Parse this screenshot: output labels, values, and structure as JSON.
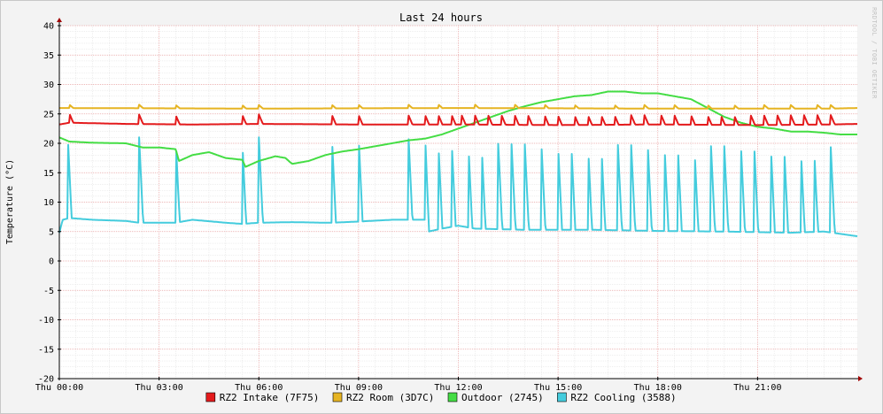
{
  "chart_data": {
    "type": "line",
    "title": "Last 24 hours",
    "ylabel": "Temperature (°C)",
    "watermark": "RRDTOOL / TOBI OETIKER",
    "ylim": [
      -20,
      40
    ],
    "yticks": [
      40,
      35,
      30,
      25,
      20,
      15,
      10,
      5,
      0,
      -5,
      -10,
      -15,
      -20
    ],
    "xlim_hours": [
      0,
      24
    ],
    "xticks": [
      {
        "hour": 0,
        "label": "Thu 00:00"
      },
      {
        "hour": 3,
        "label": "Thu 03:00"
      },
      {
        "hour": 6,
        "label": "Thu 06:00"
      },
      {
        "hour": 9,
        "label": "Thu 09:00"
      },
      {
        "hour": 12,
        "label": "Thu 12:00"
      },
      {
        "hour": 15,
        "label": "Thu 15:00"
      },
      {
        "hour": 18,
        "label": "Thu 18:00"
      },
      {
        "hour": 21,
        "label": "Thu 21:00"
      }
    ],
    "grid": true,
    "legend_position": "bottom",
    "series": [
      {
        "name": "RZ2 Intake (7F75)",
        "color": "#e41a1c",
        "base": 23.3,
        "points": [
          [
            0,
            23.2
          ],
          [
            0.3,
            23.5
          ],
          [
            2,
            23.3
          ],
          [
            4,
            23.2
          ],
          [
            6,
            23.3
          ],
          [
            9,
            23.2
          ],
          [
            12,
            23.2
          ],
          [
            15,
            23.1
          ],
          [
            18,
            23.2
          ],
          [
            21,
            23.1
          ],
          [
            23.2,
            23.2
          ],
          [
            24,
            23.3
          ]
        ],
        "spike_height": 1.6,
        "spikes": [
          0.3,
          2.4,
          3.5,
          5.5,
          6.0,
          8.2,
          9.0,
          10.5,
          11.0,
          11.4,
          11.8,
          12.1,
          12.5,
          12.9,
          13.3,
          13.7,
          14.1,
          14.6,
          15.0,
          15.5,
          15.9,
          16.3,
          16.7,
          17.2,
          17.6,
          18.1,
          18.5,
          19.0,
          19.5,
          19.9,
          20.3,
          20.8,
          21.2,
          21.6,
          22.0,
          22.4,
          22.8,
          23.2
        ]
      },
      {
        "name": "RZ2 Room (3D7C)",
        "color": "#e6b422",
        "base": 26.0,
        "points": [
          [
            0,
            26.0
          ],
          [
            6,
            25.9
          ],
          [
            12,
            26.0
          ],
          [
            18,
            25.9
          ],
          [
            23.2,
            25.9
          ],
          [
            24,
            26.0
          ]
        ],
        "spike_height": 0.6,
        "spikes": [
          0.3,
          2.4,
          3.5,
          5.5,
          6.0,
          8.2,
          9.0,
          10.5,
          11.4,
          12.5,
          13.7,
          14.6,
          15.5,
          16.7,
          17.6,
          18.5,
          19.5,
          20.3,
          21.2,
          22.0,
          22.8,
          23.2
        ]
      },
      {
        "name": "Outdoor (2745)",
        "color": "#44dd44",
        "base": 0,
        "points": [
          [
            0,
            21
          ],
          [
            0.3,
            20.3
          ],
          [
            1,
            20.1
          ],
          [
            2,
            20
          ],
          [
            2.5,
            19.3
          ],
          [
            3,
            19.3
          ],
          [
            3.5,
            19
          ],
          [
            3.6,
            17
          ],
          [
            4,
            18
          ],
          [
            4.5,
            18.5
          ],
          [
            5,
            17.5
          ],
          [
            5.5,
            17.2
          ],
          [
            5.6,
            16
          ],
          [
            6,
            17
          ],
          [
            6.5,
            17.8
          ],
          [
            6.8,
            17.5
          ],
          [
            7,
            16.5
          ],
          [
            7.5,
            17
          ],
          [
            8,
            18
          ],
          [
            8.5,
            18.6
          ],
          [
            9,
            19
          ],
          [
            9.5,
            19.5
          ],
          [
            10,
            20
          ],
          [
            10.5,
            20.5
          ],
          [
            11,
            20.8
          ],
          [
            11.5,
            21.5
          ],
          [
            12,
            22.5
          ],
          [
            12.5,
            23.5
          ],
          [
            13,
            24.5
          ],
          [
            13.5,
            25.5
          ],
          [
            14,
            26.3
          ],
          [
            14.5,
            27
          ],
          [
            15,
            27.5
          ],
          [
            15.5,
            28
          ],
          [
            16,
            28.2
          ],
          [
            16.5,
            28.8
          ],
          [
            17,
            28.8
          ],
          [
            17.5,
            28.5
          ],
          [
            18,
            28.5
          ],
          [
            18.5,
            28
          ],
          [
            19,
            27.5
          ],
          [
            19.5,
            26
          ],
          [
            20,
            24.5
          ],
          [
            20.5,
            23.5
          ],
          [
            21,
            22.8
          ],
          [
            21.5,
            22.5
          ],
          [
            22,
            22
          ],
          [
            22.5,
            22
          ],
          [
            23,
            21.8
          ],
          [
            23.5,
            21.5
          ],
          [
            24,
            21.5
          ]
        ],
        "spike_height": 0,
        "spikes": []
      },
      {
        "name": "RZ2 Cooling (3588)",
        "color": "#44ccdd",
        "base": 0,
        "points": [
          [
            0,
            4.8
          ],
          [
            0.1,
            7
          ],
          [
            0.3,
            7.3
          ],
          [
            1,
            7
          ],
          [
            2,
            6.8
          ],
          [
            2.4,
            6.5
          ],
          [
            3,
            6.5
          ],
          [
            3.5,
            6.5
          ],
          [
            4,
            7
          ],
          [
            5,
            6.5
          ],
          [
            5.5,
            6.3
          ],
          [
            6,
            6.5
          ],
          [
            7,
            6.6
          ],
          [
            8,
            6.5
          ],
          [
            8.2,
            6.5
          ],
          [
            9,
            6.7
          ],
          [
            10,
            7
          ],
          [
            11,
            7
          ],
          [
            11.1,
            5
          ],
          [
            11.5,
            5.5
          ],
          [
            12,
            6
          ],
          [
            12.5,
            5.5
          ],
          [
            14,
            5.3
          ],
          [
            16,
            5.3
          ],
          [
            18,
            5.1
          ],
          [
            20,
            5
          ],
          [
            22,
            4.8
          ],
          [
            23,
            5
          ],
          [
            24,
            4.2
          ]
        ],
        "spike_height": 14.5,
        "spikes": [
          0.25,
          2.4,
          3.5,
          5.5,
          6.0,
          8.2,
          9.0,
          10.5,
          11.0,
          11.4,
          11.8,
          12.3,
          12.7,
          13.2,
          13.6,
          14.0,
          14.5,
          15.0,
          15.4,
          15.9,
          16.3,
          16.8,
          17.2,
          17.7,
          18.2,
          18.6,
          19.1,
          19.6,
          20.0,
          20.5,
          20.9,
          21.4,
          21.8,
          22.3,
          22.7,
          23.2
        ]
      }
    ]
  }
}
